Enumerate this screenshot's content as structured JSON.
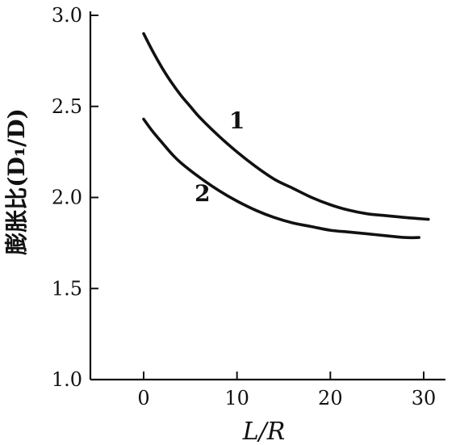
{
  "chart_data": {
    "type": "line",
    "xlabel": "L/R",
    "ylabel": "膨胀比(D₁/D)",
    "xlim": [
      -5.5,
      32
    ],
    "ylim": [
      1.0,
      3.0
    ],
    "xticks": [
      0,
      10,
      20,
      30
    ],
    "yticks": [
      1.0,
      1.5,
      2.0,
      2.5,
      3.0
    ],
    "xtick_labels": [
      "0",
      "10",
      "20",
      "30"
    ],
    "ytick_labels": [
      "1.0",
      "1.5",
      "2.0",
      "2.5",
      "3.0"
    ],
    "grid": false,
    "series": [
      {
        "name": "1",
        "x": [
          0,
          1,
          2,
          3,
          4,
          5,
          6,
          8,
          10,
          12,
          14,
          16,
          18,
          20,
          22,
          24,
          26,
          28,
          30.5
        ],
        "y": [
          2.9,
          2.8,
          2.71,
          2.63,
          2.56,
          2.5,
          2.44,
          2.34,
          2.25,
          2.17,
          2.1,
          2.05,
          2.0,
          1.96,
          1.93,
          1.91,
          1.9,
          1.89,
          1.88
        ]
      },
      {
        "name": "2",
        "x": [
          0,
          1,
          2,
          3,
          4,
          6,
          8,
          10,
          12,
          14,
          16,
          18,
          20,
          22,
          24,
          26,
          28,
          29.5
        ],
        "y": [
          2.43,
          2.36,
          2.3,
          2.24,
          2.19,
          2.11,
          2.04,
          1.98,
          1.93,
          1.89,
          1.86,
          1.84,
          1.82,
          1.81,
          1.8,
          1.79,
          1.78,
          1.78
        ]
      }
    ]
  }
}
